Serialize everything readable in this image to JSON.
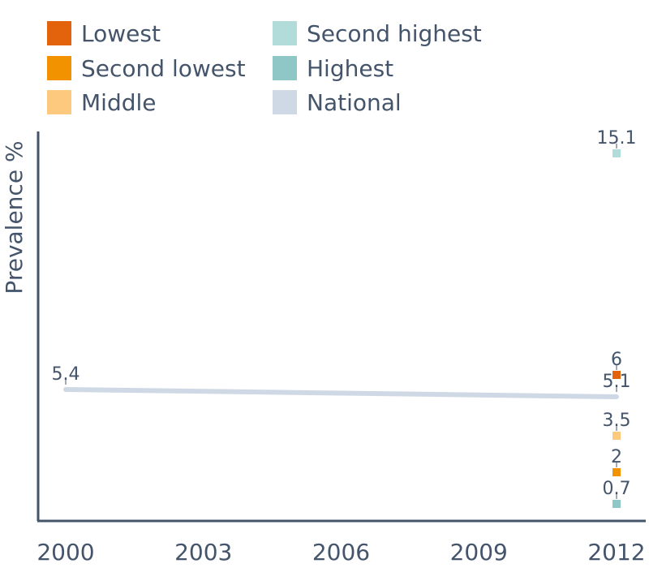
{
  "chart_data": {
    "type": "line",
    "title": "",
    "xlabel": "",
    "ylabel": "Prevalence %",
    "x_ticks": [
      "2000",
      "2003",
      "2006",
      "2009",
      "2012"
    ],
    "xlim": [
      2000,
      2012
    ],
    "ylim": [
      0,
      16
    ],
    "grid": false,
    "legend_position": "top",
    "series": [
      {
        "name": "Lowest",
        "color": "#e3620c",
        "points": [
          {
            "x": 2012,
            "y": 6,
            "label": "6"
          }
        ]
      },
      {
        "name": "Second lowest",
        "color": "#f39200",
        "points": [
          {
            "x": 2012,
            "y": 2,
            "label": "2"
          }
        ]
      },
      {
        "name": "Middle",
        "color": "#fcc97f",
        "points": [
          {
            "x": 2012,
            "y": 3.5,
            "label": "3.5"
          }
        ]
      },
      {
        "name": "Second highest",
        "color": "#b2dcd9",
        "points": [
          {
            "x": 2012,
            "y": 15.1,
            "label": "15.1"
          }
        ]
      },
      {
        "name": "Highest",
        "color": "#8fc7c7",
        "points": [
          {
            "x": 2012,
            "y": 0.7,
            "label": "0.7"
          }
        ]
      },
      {
        "name": "National",
        "color": "#cfd9e6",
        "points": [
          {
            "x": 2000,
            "y": 5.4,
            "label": "5.4"
          },
          {
            "x": 2012,
            "y": 5.1,
            "label": "5.1"
          }
        ]
      }
    ]
  }
}
